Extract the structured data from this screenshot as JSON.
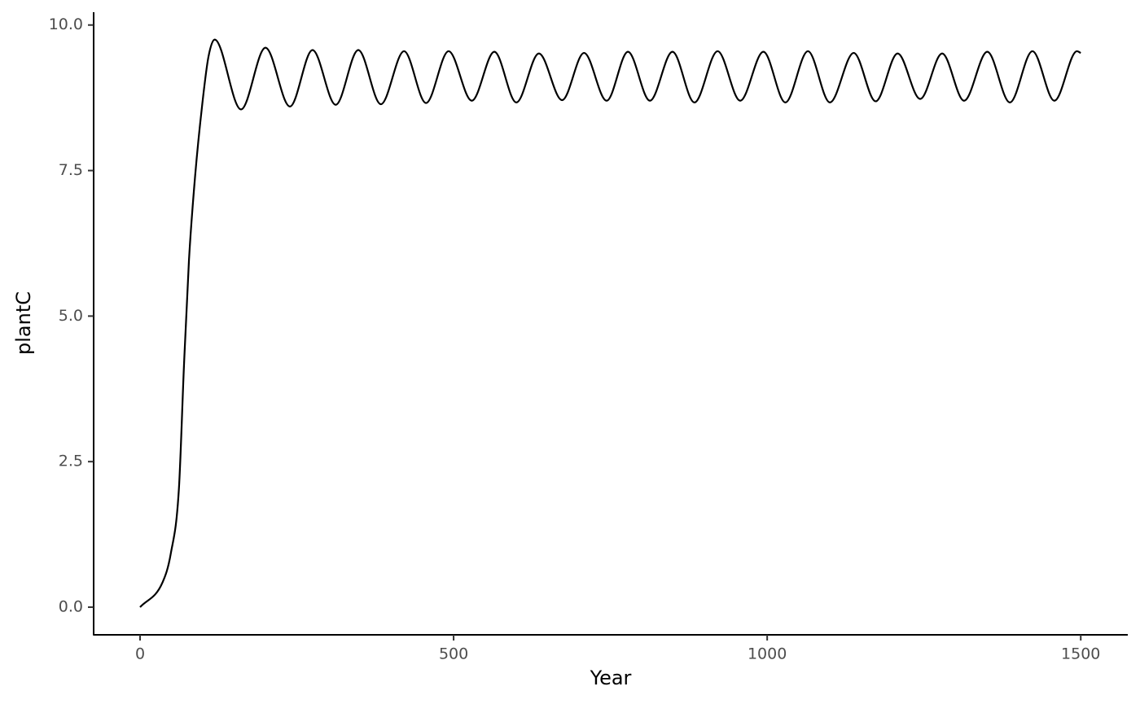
{
  "chart_data": {
    "type": "line",
    "x_label": "Year",
    "y_label": "plantC",
    "xlim": [
      -74,
      1575
    ],
    "ylim": [
      -0.475,
      10.22
    ],
    "xticks": [
      0,
      500,
      1000,
      1500
    ],
    "yticks": [
      {
        "value": 0,
        "label": "0.0"
      },
      2.5,
      {
        "value": 5,
        "label": "5.0"
      },
      7.5,
      {
        "value": 10,
        "label": "10.0"
      }
    ],
    "grid": false,
    "series": [
      {
        "color": "#000000",
        "x": [
          0,
          36,
          49,
          62,
          70,
          78,
          88,
          99,
          109,
          119,
          161,
          200,
          239,
          275,
          312,
          348,
          384,
          421,
          456,
          492,
          529,
          565,
          600,
          636,
          673,
          708,
          744,
          778,
          813,
          849,
          884,
          921,
          957,
          994,
          1029,
          1065,
          1100,
          1138,
          1173,
          1208,
          1244,
          1279,
          1314,
          1351,
          1387,
          1423,
          1458,
          1494,
          1500
        ],
        "values": [
          0,
          0.43,
          0.92,
          2.04,
          4.14,
          5.96,
          7.43,
          8.62,
          9.45,
          9.75,
          8.55,
          9.61,
          8.6,
          9.57,
          8.63,
          9.57,
          8.64,
          9.55,
          8.66,
          9.55,
          8.7,
          9.54,
          8.67,
          9.51,
          8.71,
          9.52,
          8.7,
          9.54,
          8.7,
          9.54,
          8.67,
          9.55,
          8.7,
          9.54,
          8.67,
          9.55,
          8.67,
          9.52,
          8.69,
          9.51,
          8.73,
          9.51,
          8.7,
          9.54,
          8.67,
          9.55,
          8.7,
          9.55,
          9.52
        ]
      }
    ]
  }
}
